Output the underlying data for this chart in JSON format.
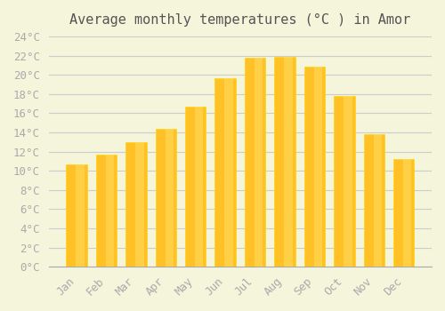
{
  "title": "Average monthly temperatures (°C ) in Amor",
  "months": [
    "Jan",
    "Feb",
    "Mar",
    "Apr",
    "May",
    "Jun",
    "Jul",
    "Aug",
    "Sep",
    "Oct",
    "Nov",
    "Dec"
  ],
  "values": [
    10.7,
    11.7,
    13.0,
    14.4,
    16.7,
    19.6,
    21.8,
    21.9,
    20.8,
    17.8,
    13.8,
    11.2
  ],
  "bar_color_face": "#FFC125",
  "bar_color_edge": "#FFD700",
  "background_color": "#F5F5DC",
  "grid_color": "#CCCCCC",
  "ylim": [
    0,
    24
  ],
  "ytick_step": 2,
  "title_fontsize": 11,
  "tick_fontsize": 9,
  "tick_color": "#AAAAAA",
  "spine_color": "#AAAAAA",
  "font_family": "monospace"
}
